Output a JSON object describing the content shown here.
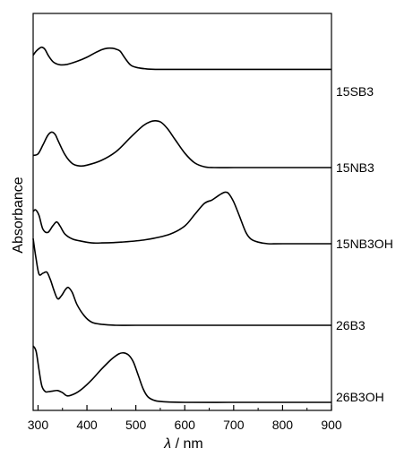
{
  "chart_data": {
    "type": "line",
    "title": "",
    "xlabel_symbol": "λ",
    "xlabel_unit": " / nm",
    "ylabel": "Absorbance",
    "xlim": [
      290,
      900
    ],
    "xticks": [
      300,
      400,
      500,
      600,
      700,
      800,
      900
    ],
    "grid": false,
    "legend": "labels at right end of each trace",
    "series": [
      {
        "name": "15SB3",
        "x": [
          290,
          296,
          303,
          308,
          314,
          322,
          332,
          345,
          360,
          380,
          400,
          415,
          430,
          442,
          452,
          460,
          468,
          478,
          490,
          505,
          520,
          540,
          560,
          600,
          700,
          800,
          900
        ],
        "y": [
          0.72,
          0.8,
          0.86,
          0.88,
          0.84,
          0.7,
          0.58,
          0.53,
          0.54,
          0.6,
          0.68,
          0.76,
          0.83,
          0.86,
          0.86,
          0.84,
          0.8,
          0.66,
          0.52,
          0.47,
          0.45,
          0.44,
          0.44,
          0.44,
          0.44,
          0.44,
          0.44
        ]
      },
      {
        "name": "15NB3",
        "x": [
          290,
          300,
          310,
          320,
          328,
          335,
          342,
          355,
          370,
          385,
          400,
          430,
          460,
          490,
          515,
          530,
          540,
          552,
          565,
          580,
          600,
          620,
          640,
          660,
          700,
          800,
          900
        ],
        "y": [
          0.15,
          0.17,
          0.28,
          0.4,
          0.44,
          0.41,
          0.32,
          0.16,
          0.05,
          0.02,
          0.03,
          0.09,
          0.2,
          0.38,
          0.52,
          0.57,
          0.58,
          0.56,
          0.48,
          0.35,
          0.18,
          0.06,
          0.01,
          0.0,
          0.0,
          0.0,
          0.0
        ]
      },
      {
        "name": "15NB3OH",
        "x": [
          290,
          295,
          302,
          310,
          320,
          330,
          338,
          345,
          355,
          370,
          390,
          410,
          430,
          470,
          520,
          570,
          600,
          620,
          640,
          655,
          665,
          675,
          683,
          690,
          700,
          712,
          725,
          735,
          750,
          770,
          800,
          900
        ],
        "y": [
          0.4,
          0.42,
          0.35,
          0.18,
          0.14,
          0.22,
          0.27,
          0.22,
          0.12,
          0.06,
          0.03,
          0.01,
          0.01,
          0.02,
          0.05,
          0.12,
          0.22,
          0.36,
          0.5,
          0.54,
          0.58,
          0.62,
          0.64,
          0.62,
          0.52,
          0.34,
          0.14,
          0.06,
          0.02,
          0.0,
          0.0,
          0.0
        ]
      },
      {
        "name": "26B3",
        "x": [
          290,
          296,
          302,
          310,
          318,
          325,
          332,
          340,
          348,
          356,
          362,
          370,
          380,
          395,
          410,
          430,
          460,
          500,
          600,
          700,
          800,
          900
        ],
        "y": [
          1.7,
          1.3,
          1.0,
          1.02,
          1.04,
          0.9,
          0.7,
          0.52,
          0.58,
          0.7,
          0.74,
          0.64,
          0.4,
          0.18,
          0.06,
          0.02,
          0.0,
          0.0,
          0.0,
          0.0,
          0.0,
          0.0
        ]
      },
      {
        "name": "26B3OH",
        "x": [
          290,
          296,
          302,
          308,
          315,
          322,
          330,
          340,
          350,
          360,
          375,
          390,
          410,
          430,
          450,
          465,
          475,
          485,
          495,
          505,
          515,
          525,
          540,
          560,
          600,
          700,
          800,
          900
        ],
        "y": [
          1.05,
          0.95,
          0.6,
          0.3,
          0.2,
          0.2,
          0.21,
          0.22,
          0.18,
          0.12,
          0.16,
          0.25,
          0.42,
          0.62,
          0.8,
          0.9,
          0.92,
          0.88,
          0.75,
          0.5,
          0.25,
          0.1,
          0.03,
          0.01,
          0.0,
          0.0,
          0.0,
          0.0
        ]
      }
    ]
  }
}
